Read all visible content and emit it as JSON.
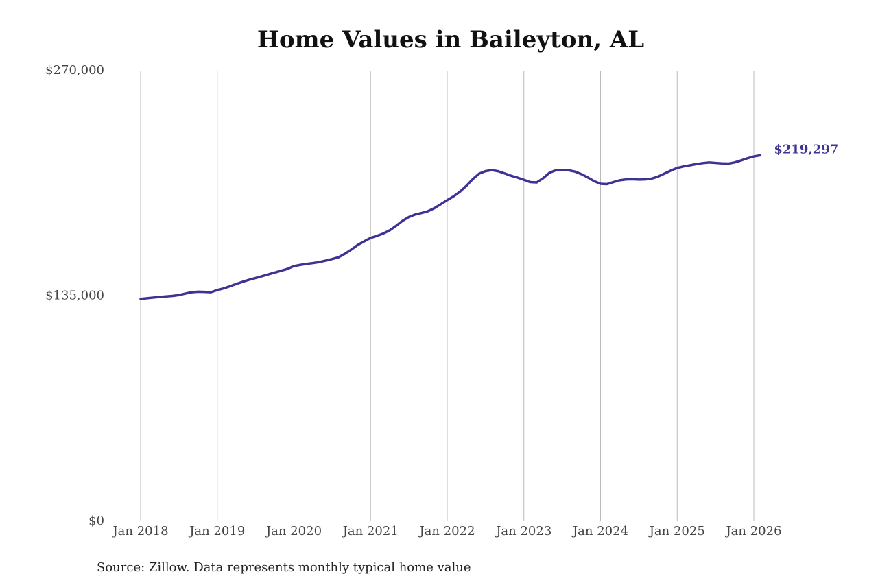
{
  "chart_data": {
    "type": "line",
    "title": "Home Values in Baileyton, AL",
    "source": "Source: Zillow. Data represents monthly typical home value",
    "x": [
      "2018-01",
      "2018-02",
      "2018-03",
      "2018-04",
      "2018-05",
      "2018-06",
      "2018-07",
      "2018-08",
      "2018-09",
      "2018-10",
      "2018-11",
      "2018-12",
      "2019-01",
      "2019-02",
      "2019-03",
      "2019-04",
      "2019-05",
      "2019-06",
      "2019-07",
      "2019-08",
      "2019-09",
      "2019-10",
      "2019-11",
      "2019-12",
      "2020-01",
      "2020-02",
      "2020-03",
      "2020-04",
      "2020-05",
      "2020-06",
      "2020-07",
      "2020-08",
      "2020-09",
      "2020-10",
      "2020-11",
      "2020-12",
      "2021-01",
      "2021-02",
      "2021-03",
      "2021-04",
      "2021-05",
      "2021-06",
      "2021-07",
      "2021-08",
      "2021-09",
      "2021-10",
      "2021-11",
      "2021-12",
      "2022-01",
      "2022-02",
      "2022-03",
      "2022-04",
      "2022-05",
      "2022-06",
      "2022-07",
      "2022-08",
      "2022-09",
      "2022-10",
      "2022-11",
      "2022-12",
      "2023-01",
      "2023-02",
      "2023-03",
      "2023-04",
      "2023-05",
      "2023-06",
      "2023-07",
      "2023-08",
      "2023-09",
      "2023-10",
      "2023-11",
      "2023-12",
      "2024-01",
      "2024-02",
      "2024-03",
      "2024-04",
      "2024-05",
      "2024-06",
      "2024-07",
      "2024-08",
      "2024-09",
      "2024-10",
      "2024-11",
      "2024-12",
      "2025-01",
      "2025-02",
      "2025-03",
      "2025-04",
      "2025-05",
      "2025-06",
      "2025-07",
      "2025-08",
      "2025-09",
      "2025-10",
      "2025-11",
      "2025-12",
      "2026-01",
      "2026-02"
    ],
    "series": [
      {
        "name": "Home value",
        "color": "#3d3393",
        "values": [
          133200,
          133600,
          134000,
          134400,
          134700,
          135000,
          135500,
          136400,
          137200,
          137500,
          137400,
          137200,
          138500,
          139500,
          140800,
          142200,
          143500,
          144700,
          145700,
          146800,
          147900,
          149000,
          150100,
          151200,
          152900,
          153600,
          154200,
          154700,
          155300,
          156200,
          157100,
          158200,
          160300,
          162800,
          165600,
          167700,
          169750,
          171000,
          172400,
          174300,
          177000,
          180000,
          182300,
          183800,
          184700,
          185800,
          187600,
          190000,
          192400,
          194700,
          197500,
          201000,
          205000,
          208300,
          209800,
          210400,
          209700,
          208400,
          207000,
          205900,
          204600,
          203200,
          203000,
          205500,
          208800,
          210300,
          210500,
          210300,
          209500,
          208000,
          206000,
          203800,
          202200,
          202000,
          203200,
          204300,
          204800,
          204900,
          204700,
          204800,
          205300,
          206500,
          208300,
          210100,
          211700,
          212600,
          213300,
          214000,
          214600,
          215000,
          214700,
          214400,
          214300,
          215000,
          216200,
          217500,
          218600,
          219297
        ],
        "value_labels": [
          null,
          null,
          null,
          null,
          null,
          null,
          null,
          null,
          null,
          null,
          null,
          null,
          null,
          null,
          null,
          null,
          null,
          null,
          null,
          null,
          null,
          null,
          null,
          null,
          null,
          null,
          null,
          null,
          null,
          null,
          null,
          null,
          null,
          null,
          null,
          null,
          null,
          null,
          null,
          null,
          null,
          null,
          null,
          null,
          null,
          null,
          null,
          null,
          null,
          null,
          null,
          null,
          null,
          null,
          null,
          null,
          null,
          null,
          null,
          null,
          null,
          null,
          null,
          null,
          null,
          null,
          null,
          null,
          null,
          null,
          null,
          null,
          null,
          null,
          null,
          null,
          null,
          null,
          null,
          null,
          null,
          null,
          null,
          null,
          null,
          null,
          null,
          null,
          null,
          null,
          null,
          null,
          null,
          null,
          null,
          null,
          null,
          "$219,297"
        ]
      }
    ],
    "ylim": [
      0,
      270000
    ],
    "yticks": [
      {
        "value": 0,
        "label": "$0"
      },
      {
        "value": 135000,
        "label": "$135,000"
      },
      {
        "value": 270000,
        "label": "$270,000"
      }
    ],
    "xticks": [
      {
        "value": "2018-01",
        "label": "Jan 2018"
      },
      {
        "value": "2019-01",
        "label": "Jan 2019"
      },
      {
        "value": "2020-01",
        "label": "Jan 2020"
      },
      {
        "value": "2021-01",
        "label": "Jan 2021"
      },
      {
        "value": "2022-01",
        "label": "Jan 2022"
      },
      {
        "value": "2023-01",
        "label": "Jan 2023"
      },
      {
        "value": "2024-01",
        "label": "Jan 2024"
      },
      {
        "value": "2025-01",
        "label": "Jan 2025"
      },
      {
        "value": "2026-01",
        "label": "Jan 2026"
      }
    ],
    "grid": true
  }
}
